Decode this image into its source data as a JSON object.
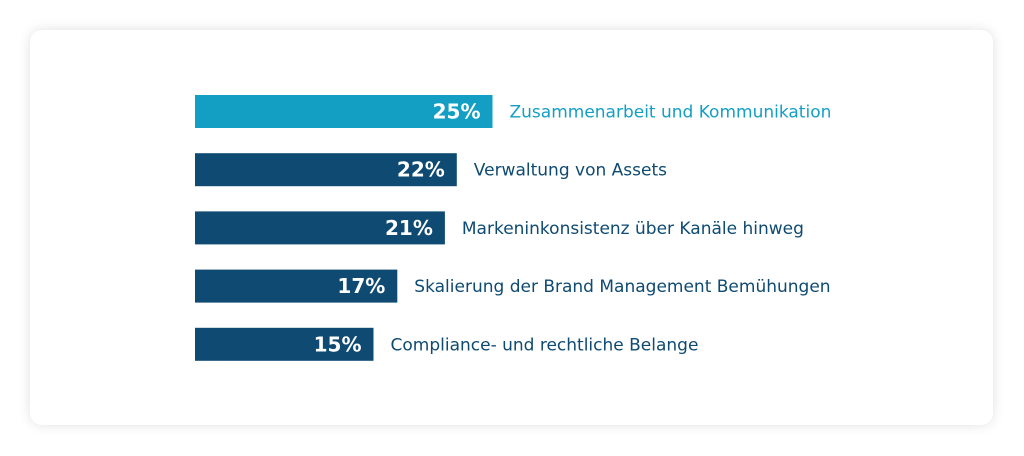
{
  "chart_data": {
    "type": "bar",
    "orientation": "horizontal",
    "categories": [
      "Zusammenarbeit und Kommunikation",
      "Verwaltung von Assets",
      "Markeninkonsistenz über Kanäle hinweg",
      "Skalierung der Brand Management Bemühungen",
      "Compliance- und rechtliche Belange"
    ],
    "values": [
      25,
      22,
      21,
      17,
      15
    ],
    "value_labels": [
      "25%",
      "22%",
      "21%",
      "17%",
      "15%"
    ],
    "unit": "%",
    "highlight_index": 0,
    "colors": {
      "highlight": "#139fc4",
      "default": "#0e4a72",
      "label_default": "#0e4a72",
      "label_highlight": "#139fc4"
    },
    "grid": false,
    "legend": "none"
  }
}
